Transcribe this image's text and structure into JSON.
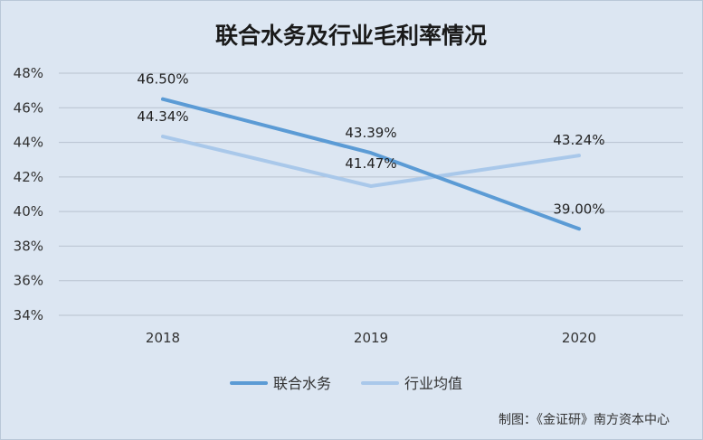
{
  "chart_data": {
    "type": "line",
    "title": "联合水务及行业毛利率情况",
    "categories": [
      "2018",
      "2019",
      "2020"
    ],
    "series": [
      {
        "name": "联合水务",
        "values": [
          46.5,
          43.39,
          39.0
        ],
        "labels": [
          "46.50%",
          "43.39%",
          "39.00%"
        ],
        "color": "#5b9bd5"
      },
      {
        "name": "行业均值",
        "values": [
          44.34,
          41.47,
          43.24
        ],
        "labels": [
          "44.34%",
          "41.47%",
          "43.24%"
        ],
        "color": "#a9c8ea"
      }
    ],
    "ylim": [
      34,
      48
    ],
    "yticks": [
      "34%",
      "36%",
      "38%",
      "40%",
      "42%",
      "44%",
      "46%",
      "48%"
    ],
    "grid": true,
    "legend_position": "bottom",
    "xlabel": "",
    "ylabel": ""
  },
  "footer": {
    "credit": "制图：《金证研》南方资本中心"
  }
}
